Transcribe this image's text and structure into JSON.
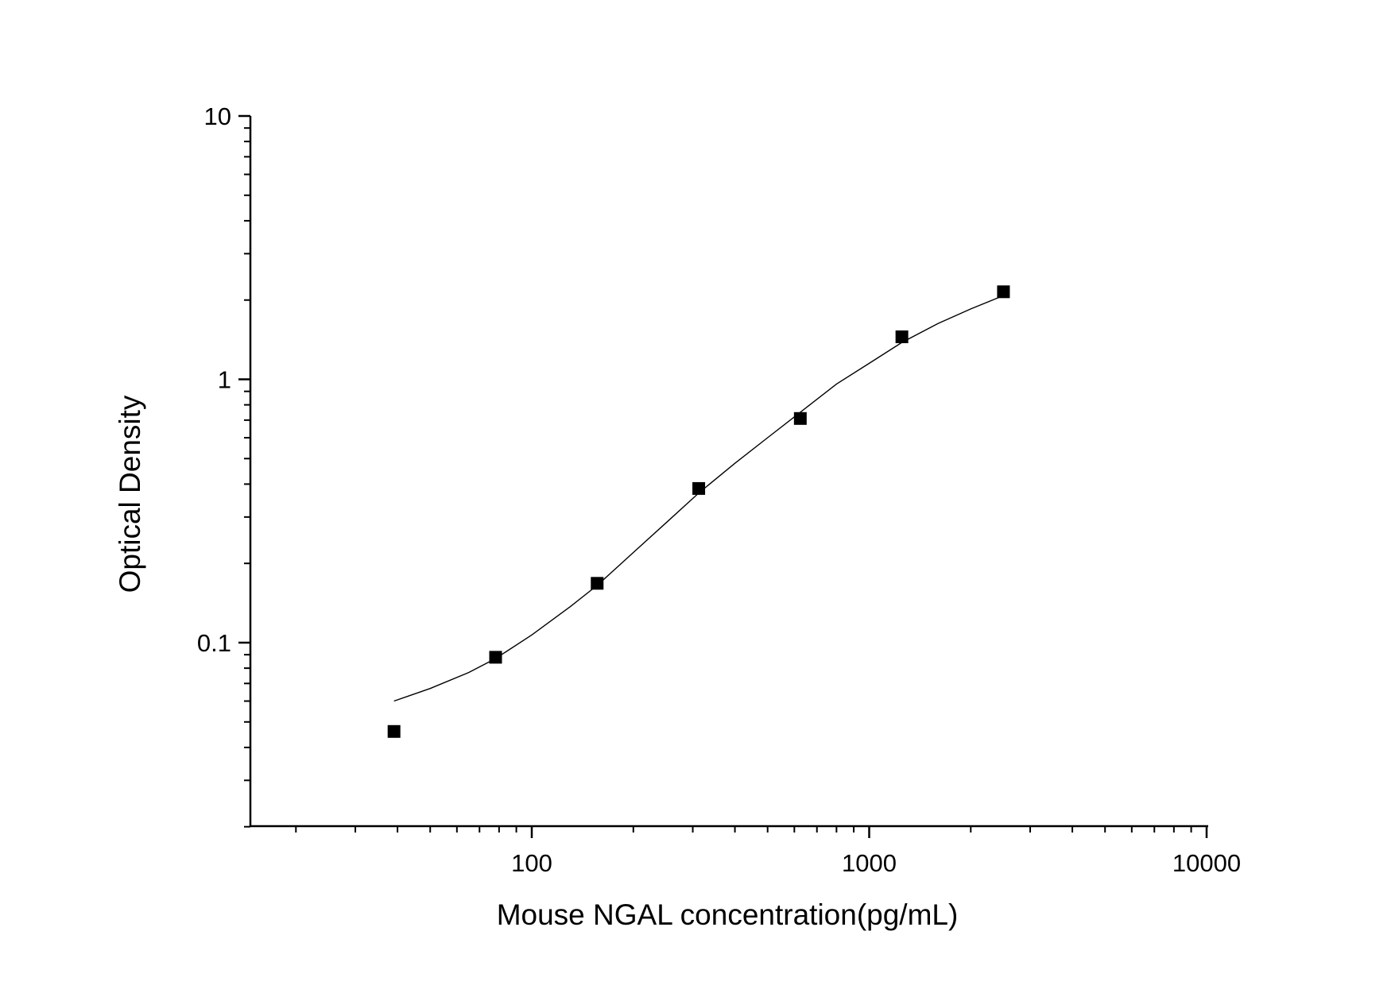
{
  "chart_data": {
    "type": "scatter",
    "title": "",
    "xlabel": "Mouse NGAL concentration(pg/mL)",
    "ylabel": "Optical Density",
    "xscale": "log",
    "yscale": "log",
    "xlim": [
      15,
      10000
    ],
    "ylim": [
      0.02,
      10
    ],
    "x_tick_labels": [
      "100",
      "1000",
      "10000"
    ],
    "x_tick_values": [
      100,
      1000,
      10000
    ],
    "y_tick_labels": [
      "0.1",
      "1",
      "10"
    ],
    "y_tick_values": [
      0.1,
      1,
      10
    ],
    "grid": false,
    "legend": "none",
    "series": [
      {
        "type": "scatter",
        "marker": "square",
        "color": "#000000",
        "x": [
          39.06,
          78.13,
          156.25,
          312.5,
          625,
          1250,
          2500
        ],
        "y": [
          0.046,
          0.088,
          0.168,
          0.385,
          0.71,
          1.45,
          2.15
        ]
      },
      {
        "type": "line",
        "color": "#000000",
        "x": [
          39.06,
          50,
          65,
          78.13,
          100,
          130,
          156.25,
          200,
          250,
          312.5,
          400,
          500,
          625,
          800,
          1000,
          1250,
          1600,
          2000,
          2500
        ],
        "y": [
          0.06,
          0.067,
          0.077,
          0.087,
          0.107,
          0.137,
          0.165,
          0.22,
          0.285,
          0.37,
          0.48,
          0.6,
          0.75,
          0.96,
          1.15,
          1.38,
          1.63,
          1.85,
          2.08
        ]
      }
    ]
  }
}
